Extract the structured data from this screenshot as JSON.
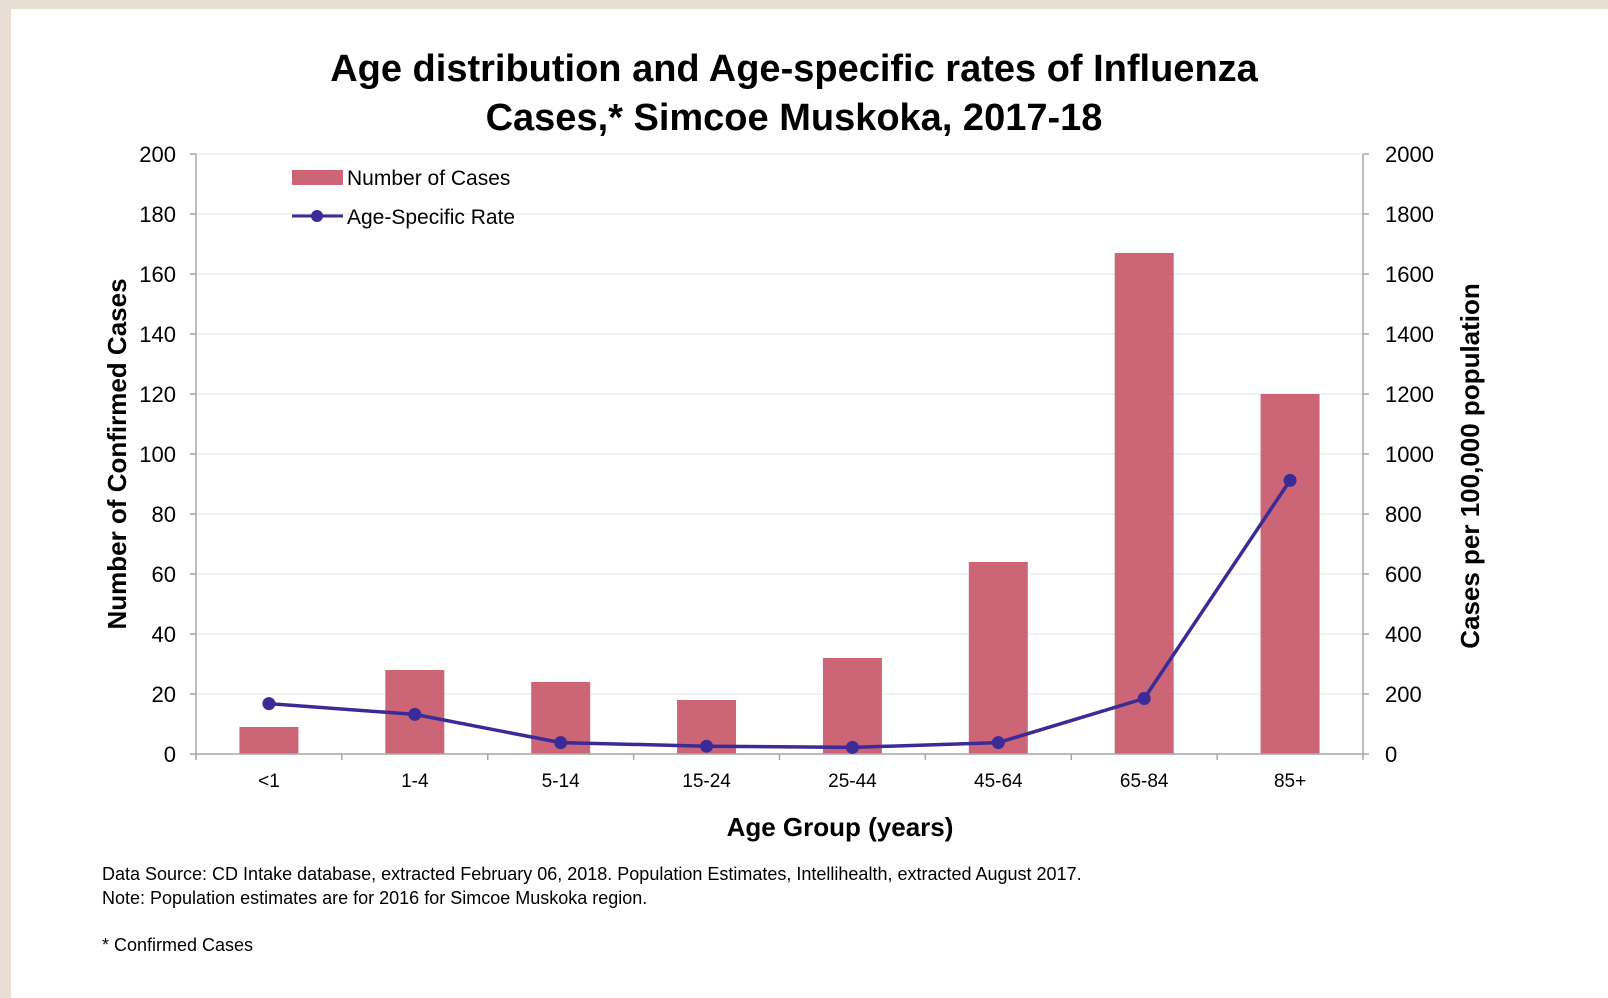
{
  "chart_data": {
    "type": "bar",
    "title_lines": [
      "Age distribution and Age-specific rates of Influenza",
      "Cases,* Simcoe Muskoka, 2017-18"
    ],
    "categories": [
      "<1",
      "1-4",
      "5-14",
      "15-24",
      "25-44",
      "45-64",
      "65-84",
      "85+"
    ],
    "series": [
      {
        "name": "Number of Cases",
        "type": "bar",
        "axis": "left",
        "color": "#cc6677",
        "values": [
          9,
          28,
          24,
          18,
          32,
          64,
          167,
          120
        ]
      },
      {
        "name": "Age-Specific Rate",
        "type": "line",
        "axis": "right",
        "color": "#3a2b96",
        "values": [
          168,
          132,
          38,
          26,
          22,
          38,
          185,
          912
        ]
      }
    ],
    "xlabel": "Age Group (years)",
    "ylabel": "Number of Confirmed Cases",
    "y2label": "Cases per 100,000 population",
    "ylim": [
      0,
      200
    ],
    "y2lim": [
      0,
      2000
    ],
    "yticks": [
      0,
      20,
      40,
      60,
      80,
      100,
      120,
      140,
      160,
      180,
      200
    ],
    "y2ticks": [
      0,
      200,
      400,
      600,
      800,
      1000,
      1200,
      1400,
      1600,
      1800,
      2000
    ],
    "legend_position": "top-left",
    "grid": true
  },
  "footnotes": {
    "source": "Data Source:  CD Intake database, extracted February 06, 2018. Population Estimates, Intellihealth, extracted August 2017.",
    "note": "Note: Population estimates are for 2016 for Simcoe Muskoka region.",
    "asterisk": "* Confirmed Cases"
  }
}
